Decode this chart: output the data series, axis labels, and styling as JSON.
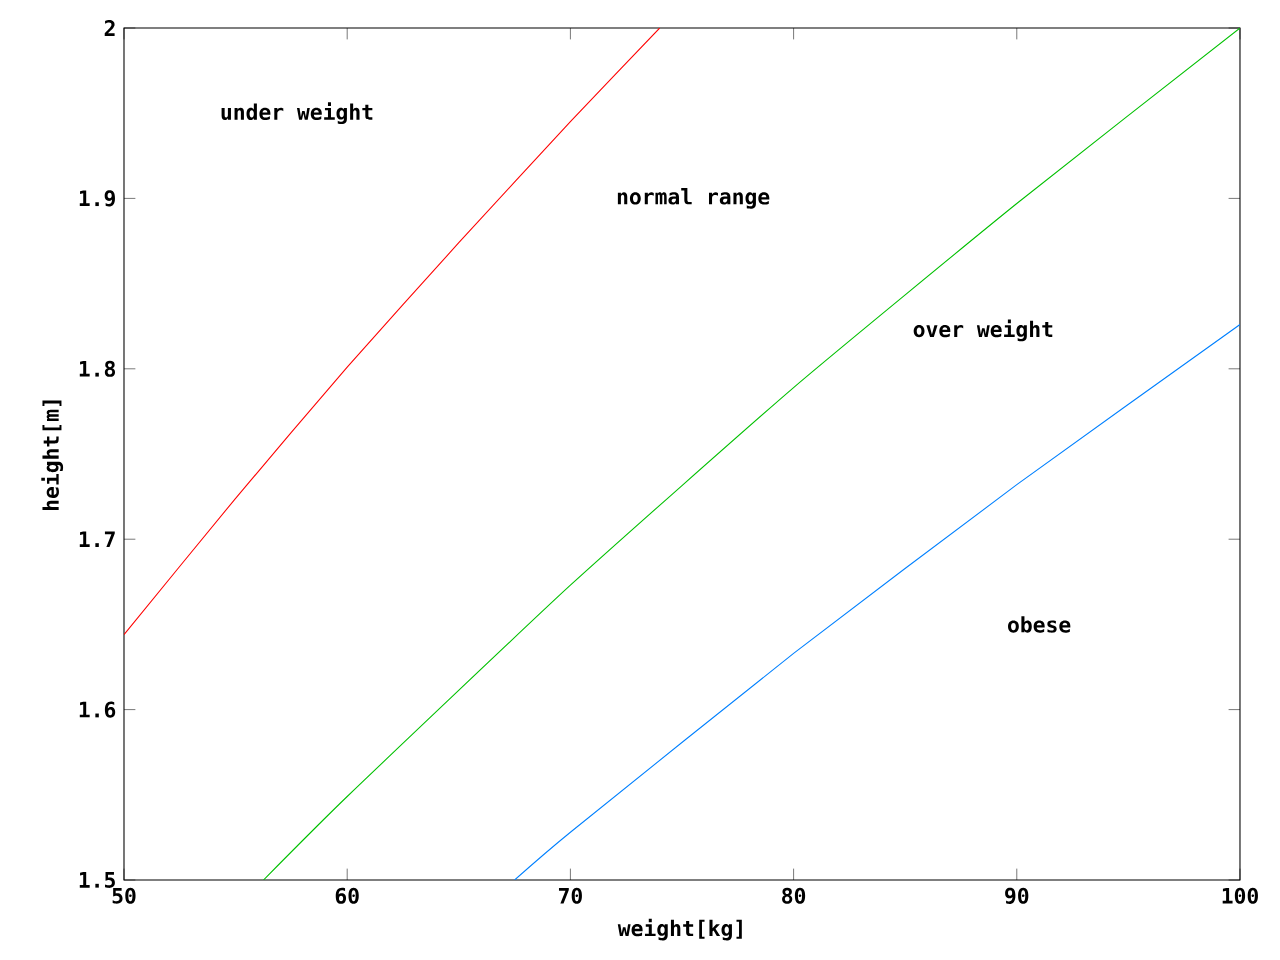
{
  "chart_data": {
    "type": "line",
    "xlabel": "weight[kg]",
    "ylabel": "height[m]",
    "xlim": [
      50,
      100
    ],
    "ylim": [
      1.5,
      2
    ],
    "xticks": [
      50,
      60,
      70,
      80,
      90,
      100
    ],
    "yticks": [
      1.5,
      1.6,
      1.7,
      1.8,
      1.9,
      2
    ],
    "series": [
      {
        "color": "#ff0000",
        "x": [
          50,
          55,
          60,
          65,
          70,
          74
        ],
        "values": [
          1.644,
          1.724,
          1.801,
          1.874,
          1.945,
          2.0
        ]
      },
      {
        "color": "#00c000",
        "x": [
          56.25,
          60,
          70,
          80,
          90,
          100
        ],
        "values": [
          1.5,
          1.549,
          1.673,
          1.789,
          1.897,
          2.0
        ]
      },
      {
        "color": "#0080ff",
        "x": [
          67.5,
          70,
          80,
          90,
          100
        ],
        "values": [
          1.5,
          1.528,
          1.633,
          1.732,
          1.826
        ]
      }
    ],
    "annotations": [
      "under weight",
      "normal range",
      "over weight",
      "obese"
    ]
  }
}
